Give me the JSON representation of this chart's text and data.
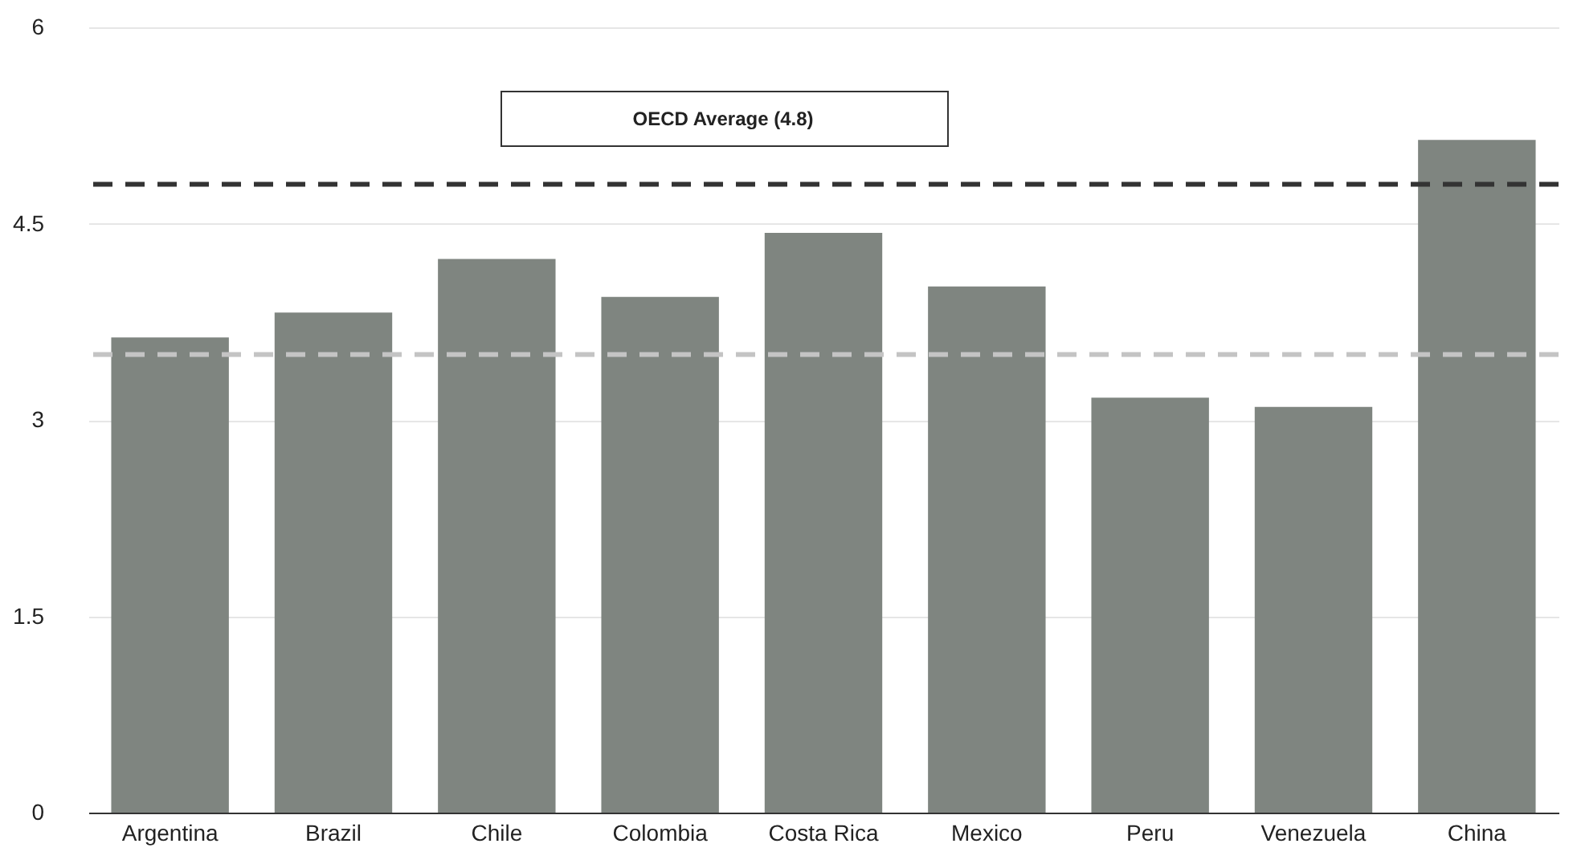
{
  "chart_data": {
    "type": "bar",
    "categories": [
      "Argentina",
      "Brazil",
      "Chile",
      "Colombia",
      "Costa Rica",
      "Mexico",
      "Peru",
      "Venezuela",
      "China"
    ],
    "values": [
      3.63,
      3.82,
      4.23,
      3.94,
      4.43,
      4.02,
      3.17,
      3.1,
      5.14
    ],
    "color": "#7f8580",
    "ylim": [
      0,
      6
    ],
    "yticks": [
      0,
      1.5,
      3,
      4.5,
      6
    ],
    "grid": "y",
    "ref_lines": [
      {
        "axis": "y",
        "value": 4.8,
        "label": "OECD Average (4.8)",
        "color": "#333333",
        "line_style": "dashed"
      },
      {
        "axis": "y",
        "value": 3.5,
        "color": "#c4c4c4",
        "line_style": "dashed"
      }
    ]
  }
}
